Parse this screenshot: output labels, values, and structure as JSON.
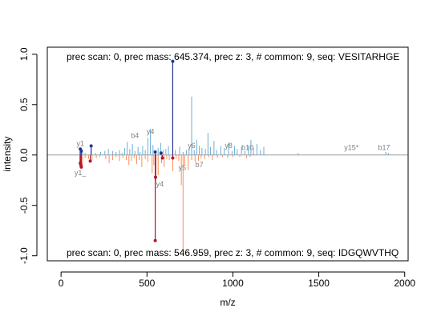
{
  "chart_data": {
    "type": "bar",
    "xlabel": "m/z",
    "ylabel": "intensity",
    "xlim": [
      -80,
      2020
    ],
    "ylim": [
      -1.05,
      1.07
    ],
    "x_ticks": [
      0,
      500,
      1000,
      1500,
      2000
    ],
    "y_ticks": [
      -1.0,
      -0.5,
      0.0,
      0.5,
      1.0
    ],
    "x_tick_labels": [
      "0",
      "500",
      "1000",
      "1500",
      "2000"
    ],
    "y_tick_labels": [
      "-1.0",
      "-0.5",
      "0.0",
      "0.5",
      "1.0"
    ],
    "top_annotation": "prec scan: 0, prec mass: 645.374, prec z: 3, # common: 9, seq: VESITARHGE",
    "bottom_annotation": "prec scan: 0, prec mass: 546.959, prec z: 3, # common: 9, seq: IDGQWVTHQ",
    "colors": {
      "top_peaks": "#6baed6",
      "bottom_peaks": "#fc8d59",
      "top_matched": "#253494",
      "bottom_matched": "#b2182b",
      "baseline": "#999999",
      "label": "#7f7f7f"
    },
    "series": [
      {
        "peaks": [
          [
            110,
            0.05
          ],
          [
            125,
            0.03
          ],
          [
            140,
            0.02
          ],
          [
            175,
            0.04
          ],
          [
            200,
            0.02
          ],
          [
            230,
            0.03
          ],
          [
            255,
            0.04
          ],
          [
            275,
            0.06
          ],
          [
            300,
            0.04
          ],
          [
            320,
            0.03
          ],
          [
            340,
            0.05
          ],
          [
            355,
            0.02
          ],
          [
            370,
            0.07
          ],
          [
            385,
            0.13
          ],
          [
            400,
            0.06
          ],
          [
            415,
            0.11
          ],
          [
            430,
            0.04
          ],
          [
            448,
            0.08
          ],
          [
            460,
            0.03
          ],
          [
            475,
            0.09
          ],
          [
            490,
            0.05
          ],
          [
            505,
            0.17
          ],
          [
            520,
            0.26
          ],
          [
            535,
            0.1
          ],
          [
            550,
            0.05
          ],
          [
            565,
            0.07
          ],
          [
            580,
            0.12
          ],
          [
            595,
            0.05
          ],
          [
            610,
            0.06
          ],
          [
            625,
            0.09
          ],
          [
            650,
            0.93
          ],
          [
            665,
            0.05
          ],
          [
            690,
            0.08
          ],
          [
            710,
            0.03
          ],
          [
            730,
            0.05
          ],
          [
            745,
            0.07
          ],
          [
            760,
            0.58
          ],
          [
            775,
            0.05
          ],
          [
            790,
            0.15
          ],
          [
            805,
            0.09
          ],
          [
            820,
            0.07
          ],
          [
            840,
            0.06
          ],
          [
            855,
            0.22
          ],
          [
            870,
            0.08
          ],
          [
            890,
            0.14
          ],
          [
            905,
            0.05
          ],
          [
            930,
            0.09
          ],
          [
            950,
            0.07
          ],
          [
            975,
            0.12
          ],
          [
            995,
            0.04
          ],
          [
            1010,
            0.09
          ],
          [
            1025,
            0.06
          ],
          [
            1050,
            0.08
          ],
          [
            1070,
            0.04
          ],
          [
            1090,
            0.09
          ],
          [
            1105,
            0.15
          ],
          [
            1120,
            0.07
          ],
          [
            1140,
            0.11
          ],
          [
            1160,
            0.05
          ],
          [
            1180,
            0.08
          ],
          [
            1380,
            0.02
          ],
          [
            1890,
            0.03
          ],
          [
            1905,
            0.02
          ]
        ],
        "matched": [
          [
            112,
            0.06
          ],
          [
            118,
            0.04
          ],
          [
            175,
            0.09
          ],
          [
            548,
            0.03
          ],
          [
            582,
            0.02
          ],
          [
            650,
            0.93
          ]
        ],
        "labels": [
          {
            "text": "y1",
            "x": 112,
            "y": 0.09
          },
          {
            "text": "b4",
            "x": 430,
            "y": 0.17
          },
          {
            "text": "y4",
            "x": 520,
            "y": 0.21
          },
          {
            "text": "y6",
            "x": 760,
            "y": 0.07
          },
          {
            "text": "y8",
            "x": 975,
            "y": 0.07
          },
          {
            "text": "b10",
            "x": 1085,
            "y": 0.05
          },
          {
            "text": "y15*",
            "x": 1690,
            "y": 0.05
          },
          {
            "text": "b17",
            "x": 1880,
            "y": 0.05
          }
        ]
      },
      {
        "peaks": [
          [
            108,
            -0.08
          ],
          [
            125,
            -0.1
          ],
          [
            140,
            -0.03
          ],
          [
            160,
            -0.04
          ],
          [
            180,
            -0.05
          ],
          [
            205,
            -0.03
          ],
          [
            225,
            -0.02
          ],
          [
            260,
            -0.04
          ],
          [
            280,
            -0.08
          ],
          [
            300,
            -0.05
          ],
          [
            320,
            -0.02
          ],
          [
            340,
            -0.06
          ],
          [
            360,
            -0.03
          ],
          [
            380,
            -0.05
          ],
          [
            395,
            -0.1
          ],
          [
            410,
            -0.06
          ],
          [
            425,
            -0.03
          ],
          [
            440,
            -0.09
          ],
          [
            455,
            -0.05
          ],
          [
            470,
            -0.12
          ],
          [
            490,
            -0.04
          ],
          [
            505,
            -0.07
          ],
          [
            530,
            -0.18
          ],
          [
            540,
            -0.1
          ],
          [
            548,
            -0.85
          ],
          [
            552,
            -0.26
          ],
          [
            565,
            -0.2
          ],
          [
            585,
            -0.08
          ],
          [
            600,
            -0.12
          ],
          [
            615,
            -0.04
          ],
          [
            630,
            -0.05
          ],
          [
            650,
            -0.16
          ],
          [
            670,
            -0.04
          ],
          [
            685,
            -0.06
          ],
          [
            700,
            -0.3
          ],
          [
            710,
            -0.98
          ],
          [
            720,
            -0.1
          ],
          [
            740,
            -0.15
          ],
          [
            760,
            -0.05
          ],
          [
            780,
            -0.07
          ],
          [
            800,
            -0.06
          ],
          [
            815,
            -0.03
          ],
          [
            835,
            -0.04
          ],
          [
            860,
            -0.02
          ],
          [
            880,
            -0.05
          ],
          [
            910,
            -0.03
          ],
          [
            940,
            -0.02
          ],
          [
            970,
            -0.03
          ],
          [
            1000,
            -0.02
          ],
          [
            1040,
            -0.02
          ],
          [
            1080,
            -0.03
          ],
          [
            1100,
            -0.02
          ]
        ],
        "matched": [
          [
            112,
            -0.08
          ],
          [
            115,
            -0.1
          ],
          [
            118,
            -0.12
          ],
          [
            170,
            -0.06
          ],
          [
            548,
            -0.85
          ],
          [
            550,
            -0.22
          ],
          [
            590,
            -0.03
          ],
          [
            650,
            -0.03
          ]
        ],
        "labels": [
          {
            "text": "y1_",
            "x": 112,
            "y": -0.2
          },
          {
            "text": "y4",
            "x": 575,
            "y": -0.31
          },
          {
            "text": "y5",
            "x": 705,
            "y": -0.15
          },
          {
            "text": "b7",
            "x": 805,
            "y": -0.12
          }
        ]
      }
    ]
  }
}
